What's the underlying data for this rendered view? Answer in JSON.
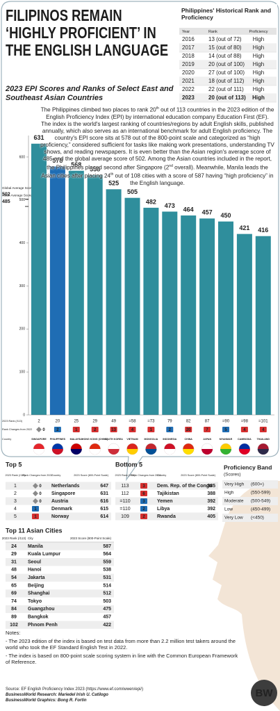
{
  "header": {
    "title": "FILIPINOS REMAIN ‘HIGHLY PROFICIENT’ IN THE ENGLISH LANGUAGE",
    "subtitle": "2023 EPI Scores and Ranks of Select East and Southeast Asian Countries"
  },
  "history": {
    "title": "Philippines' Historical Rank and Proficiency",
    "columns": [
      "Year",
      "Rank",
      "Proficiency"
    ],
    "rows": [
      [
        2016,
        "13 (out of 72)",
        "High"
      ],
      [
        2017,
        "15 (out of 80)",
        "High"
      ],
      [
        2018,
        "14 (out of 88)",
        "High"
      ],
      [
        2019,
        "20 (out of 100)",
        "High"
      ],
      [
        2020,
        "27 (out of 100)",
        "High"
      ],
      [
        2021,
        "18 (out of 112)",
        "High"
      ],
      [
        2022,
        "22 (out of 111)",
        "High"
      ],
      [
        2023,
        "20 (out of 113)",
        "High"
      ]
    ]
  },
  "paragraph": [
    "The Philippines climbed two places to rank 20",
    "th",
    " out of 113 countries in the 2023 edition of the English Proficiency Index (EPI) by international education company Education First (EF). The index is the world's largest ranking of countries/regions by adult English skills, published annually, which also serves as an international benchmark for adult English proficiency. The country's EPI score sits at 578 out of the 800-point scale and categorized as “high proficiency,” considered sufficient for tasks like making work presentations, understanding TV shows, and reading newspapers. It is even better than the Asian region's average score of 485 and the global average score of 502. Among the Asian countries included in the report, the Philippines placed second after Singapore (2",
    "nd",
    " overall). Meanwhile, Manila leads the Asian cities after placing 24",
    "th",
    " out of 108 cities with a score of 587 having “high proficiency” in the English language."
  ],
  "chart_data": {
    "type": "bar",
    "categories": [
      "SINGAPORE",
      "PHILIPPINES",
      "MALAYSIA",
      "HONG KONG (CHINA)",
      "SOUTH KOREA",
      "VIETNAM",
      "MONGOLIA",
      "INDONESIA",
      "CHINA",
      "JAPAN",
      "MYANMAR",
      "CAMBODIA",
      "THAILAND"
    ],
    "values": [
      631,
      578,
      568,
      558,
      525,
      505,
      482,
      473,
      464,
      457,
      450,
      421,
      416
    ],
    "colors": [
      "#2f8e9c",
      "#1f6db4",
      "#2f8e9c",
      "#2f8e9c",
      "#2f8e9c",
      "#2f8e9c",
      "#2f8e9c",
      "#2f8e9c",
      "#2f8e9c",
      "#2f8e9c",
      "#2f8e9c",
      "#2f8e9c",
      "#2f8e9c"
    ],
    "ylim": [
      0,
      650
    ],
    "yticks": [
      0,
      100,
      200,
      300,
      400,
      500,
      600
    ],
    "ranks": [
      "2",
      "20",
      "25",
      "29",
      "49",
      "=58",
      "=73",
      "79",
      "82",
      "87",
      "=90",
      "=98",
      "=101"
    ],
    "rank_changes": [
      0,
      2,
      1,
      2,
      13,
      4,
      1,
      2,
      20,
      7,
      5,
      4,
      4
    ],
    "rank_change_directions": [
      "same",
      "up",
      "down",
      "down",
      "down",
      "down",
      "down",
      "up",
      "down",
      "down",
      "up",
      "down",
      "down"
    ],
    "row_labels": {
      "rank": "2023 Rank (/113)",
      "change": "Rank Changes from 2022",
      "country": "Country"
    },
    "annotations": [
      {
        "label": "Global Average Score:",
        "value": 502
      },
      {
        "label": "Asian Average Score:",
        "value": 485
      }
    ]
  },
  "top5": {
    "title": "Top 5",
    "columns": [
      "2023 Rank (/113)",
      "Rank Changes from 2022",
      "Country",
      "2023 Score (800-Point Scale)"
    ],
    "rows": [
      [
        1,
        0,
        "Netherlands",
        647
      ],
      [
        2,
        0,
        "Singapore",
        631
      ],
      [
        3,
        0,
        "Austria",
        616
      ],
      [
        4,
        1,
        "Denmark",
        615
      ],
      [
        5,
        1,
        "Norway",
        614
      ]
    ],
    "change_directions": [
      "same",
      "same",
      "same",
      "up",
      "down"
    ]
  },
  "bottom5": {
    "title": "Bottom 5",
    "columns": [
      "2023 Rank (/113)",
      "Rank Changes from 2022",
      "Country",
      "2023 Score (800-Point Scale)"
    ],
    "rows": [
      [
        113,
        3,
        "Dem. Rep. of the Congo",
        385
      ],
      [
        112,
        6,
        "Tajikistan",
        388
      ],
      [
        "=110",
        3,
        "Yemen",
        392
      ],
      [
        "=110",
        2,
        "Libya",
        392
      ],
      [
        109,
        2,
        "Rwanda",
        405
      ]
    ],
    "change_directions": [
      "down",
      "down",
      "up",
      "up",
      "down"
    ]
  },
  "bands": {
    "title": "Proficiency Band",
    "subtitle": "(Scores)",
    "rows": [
      [
        "Very High",
        "(600+)"
      ],
      [
        "High",
        "(550-599)"
      ],
      [
        "Moderate",
        "(500-549)"
      ],
      [
        "Low",
        "(450-499)"
      ],
      [
        "Very Low",
        "(<450)"
      ]
    ]
  },
  "cities": {
    "title": "Top 11 Asian Cities",
    "columns": [
      "2023 Rank (/113)",
      "City",
      "2023 Score (800-Point Scale)"
    ],
    "rows": [
      [
        24,
        "Manila",
        587
      ],
      [
        29,
        "Kuala Lumpur",
        564
      ],
      [
        31,
        "Seoul",
        559
      ],
      [
        48,
        "Hanoi",
        538
      ],
      [
        54,
        "Jakarta",
        531
      ],
      [
        65,
        "Beijing",
        514
      ],
      [
        69,
        "Shanghai",
        512
      ],
      [
        74,
        "Tokyo",
        503
      ],
      [
        84,
        "Guangzhou",
        475
      ],
      [
        89,
        "Bangkok",
        457
      ],
      [
        102,
        "Phnom Penh",
        422
      ]
    ]
  },
  "notes": {
    "title": "Notes:",
    "items": [
      "- The 2023 edition of the index is based on test data from more than 2.2 million test takers around the world who took the EF Standard English Test in 2022.",
      "- The index is based on 800-point scale scoring system in line with the Common European Framework of Reference."
    ]
  },
  "credits": [
    "Source: EF English Proficiency Index 2023 (https://www.ef.com/wwen/epi/)",
    "BusinessWorld Research: Mariedel Irish U. Catilogo",
    "BusinessWorld Graphics: Bong R. Fortin"
  ],
  "logo": "BW"
}
